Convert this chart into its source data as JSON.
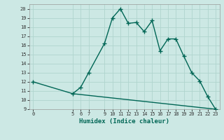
{
  "title": "",
  "xlabel": "Humidex (Indice chaleur)",
  "ylabel": "",
  "bg_color": "#cce8e4",
  "grid_color": "#b0d4ce",
  "line_color": "#006655",
  "xlim": [
    -0.5,
    23.5
  ],
  "ylim": [
    9,
    20.5
  ],
  "xticks": [
    0,
    5,
    6,
    7,
    9,
    10,
    11,
    12,
    13,
    14,
    15,
    16,
    17,
    18,
    19,
    20,
    21,
    22,
    23
  ],
  "yticks": [
    9,
    10,
    11,
    12,
    13,
    14,
    15,
    16,
    17,
    18,
    19,
    20
  ],
  "curve1_x": [
    0,
    5,
    6,
    7,
    9,
    10,
    11,
    12,
    13,
    14,
    15,
    16,
    17,
    18,
    19,
    20,
    21,
    22,
    23
  ],
  "curve1_y": [
    12,
    10.7,
    11.4,
    13.0,
    16.2,
    19.0,
    20.0,
    18.4,
    18.5,
    17.5,
    18.7,
    15.4,
    16.7,
    16.7,
    14.8,
    13.0,
    12.1,
    10.4,
    9.0
  ],
  "curve2_x": [
    5,
    23
  ],
  "curve2_y": [
    10.7,
    9.0
  ],
  "marker": "+",
  "markersize": 4,
  "linewidth": 1.0
}
